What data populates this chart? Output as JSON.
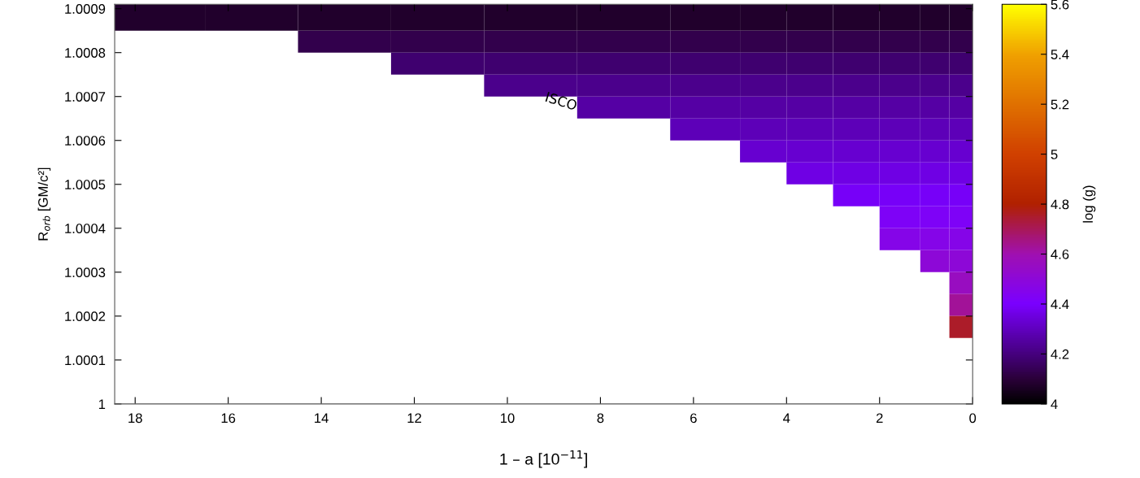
{
  "chart_data": {
    "type": "heatmap",
    "xlabel": "1 – a [10$^{−11}$]",
    "ylabel": "R$_{orb}$ [GM/c²]",
    "clabel": "log (g)",
    "x": [
      17.5,
      15.5,
      13.5,
      11.5,
      9.5,
      7.5,
      5.5,
      4.5,
      3.5,
      2.5,
      1.5,
      0.75,
      0.25
    ],
    "y": [
      1.000875,
      1.000825,
      1.000775,
      1.000725,
      1.000675,
      1.000625,
      1.000575,
      1.000525,
      1.000475,
      1.000425,
      1.000375,
      1.000325,
      1.000275,
      1.000225,
      1.000175
    ],
    "cells": [
      [
        4.08,
        4.08,
        4.08,
        4.08,
        4.08,
        4.08,
        4.08,
        4.08,
        4.08,
        4.08,
        4.08,
        4.08,
        4.08
      ],
      [
        null,
        null,
        4.13,
        4.13,
        4.13,
        4.13,
        4.13,
        4.13,
        4.13,
        4.13,
        4.13,
        4.13,
        4.13
      ],
      [
        null,
        null,
        null,
        4.18,
        4.18,
        4.18,
        4.18,
        4.18,
        4.18,
        4.18,
        4.18,
        4.18,
        4.18
      ],
      [
        null,
        null,
        null,
        null,
        4.22,
        4.22,
        4.22,
        4.22,
        4.22,
        4.22,
        4.22,
        4.22,
        4.22
      ],
      [
        null,
        null,
        null,
        null,
        null,
        4.26,
        4.26,
        4.26,
        4.26,
        4.26,
        4.26,
        4.26,
        4.26
      ],
      [
        null,
        null,
        null,
        null,
        null,
        null,
        4.29,
        4.29,
        4.29,
        4.29,
        4.29,
        4.29,
        4.29
      ],
      [
        null,
        null,
        null,
        null,
        null,
        null,
        null,
        4.33,
        4.33,
        4.33,
        4.33,
        4.33,
        4.33
      ],
      [
        null,
        null,
        null,
        null,
        null,
        null,
        null,
        null,
        4.36,
        4.36,
        4.36,
        4.36,
        4.36
      ],
      [
        null,
        null,
        null,
        null,
        null,
        null,
        null,
        null,
        null,
        4.39,
        4.39,
        4.39,
        4.39
      ],
      [
        null,
        null,
        null,
        null,
        null,
        null,
        null,
        null,
        null,
        null,
        4.42,
        4.42,
        4.42
      ],
      [
        null,
        null,
        null,
        null,
        null,
        null,
        null,
        null,
        null,
        null,
        4.46,
        4.46,
        4.46
      ],
      [
        null,
        null,
        null,
        null,
        null,
        null,
        null,
        null,
        null,
        null,
        null,
        4.5,
        4.5
      ],
      [
        null,
        null,
        null,
        null,
        null,
        null,
        null,
        null,
        null,
        null,
        null,
        null,
        4.56
      ],
      [
        null,
        null,
        null,
        null,
        null,
        null,
        null,
        null,
        null,
        null,
        null,
        null,
        4.63
      ],
      [
        null,
        null,
        null,
        null,
        null,
        null,
        null,
        null,
        null,
        null,
        null,
        null,
        4.75
      ]
    ],
    "xlim": [
      18.44,
      0
    ],
    "xticks": [
      18,
      16,
      14,
      12,
      10,
      8,
      6,
      4,
      2,
      0
    ],
    "ylim": [
      1,
      1.00091
    ],
    "yticks": [
      1,
      1.0001,
      1.0002,
      1.0003,
      1.0004,
      1.0005,
      1.0006,
      1.0007,
      1.0008,
      1.0009
    ],
    "clim": [
      4,
      5.6
    ],
    "cticks": [
      4,
      4.2,
      4.4,
      4.6,
      4.8,
      5,
      5.2,
      5.4,
      5.6
    ],
    "annotations": [
      "ISCO"
    ],
    "grid": false
  }
}
